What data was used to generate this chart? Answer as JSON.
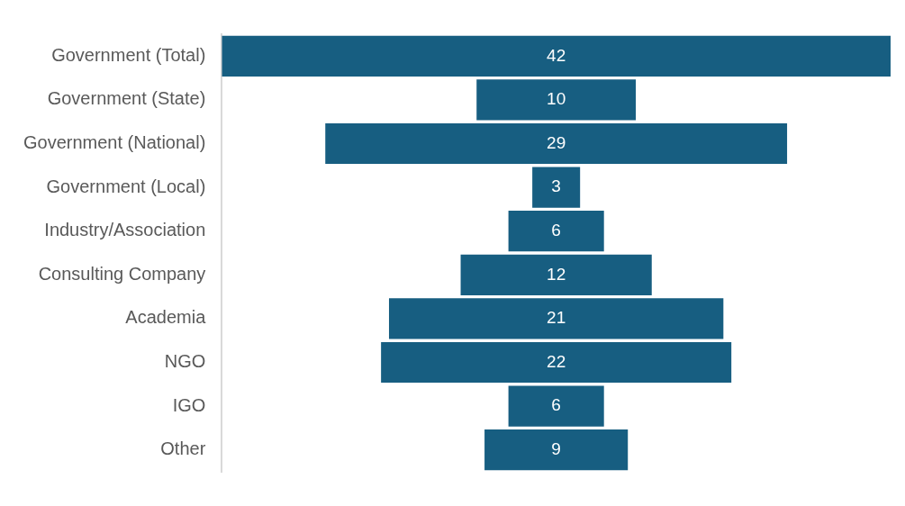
{
  "chart_data": {
    "type": "other",
    "categories": [
      "Government (Total)",
      "Government (State)",
      "Government (National)",
      "Government (Local)",
      "Industry/Association",
      "Consulting Company",
      "Academia",
      "NGO",
      "IGO",
      "Other"
    ],
    "values": [
      42,
      10,
      29,
      3,
      6,
      12,
      21,
      22,
      6,
      9
    ],
    "color": "#175e81",
    "data_labels": true
  }
}
